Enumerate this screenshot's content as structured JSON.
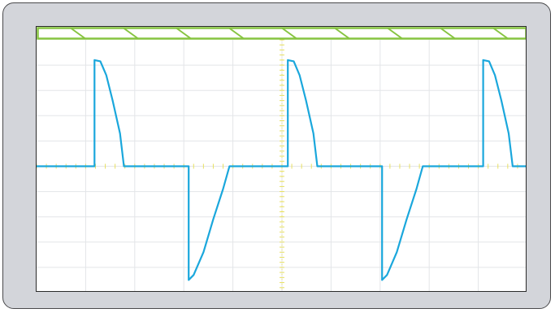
{
  "scope": {
    "grid_divisions": {
      "x": 10,
      "y": 10
    },
    "colors": {
      "bezel": "#d3d5da",
      "bezel_border": "#4a4a4c",
      "screen": "#ffffff",
      "grid": "#e3e5e8",
      "center_ticks": "#e8e060",
      "trace": "#1aa7dc",
      "trigger_band": "#86c440"
    },
    "trigger_band_segments": 9
  },
  "chart_data": {
    "type": "line",
    "xlim": [
      0,
      10
    ],
    "ylim": [
      -5,
      5
    ],
    "grid": true,
    "series": [
      {
        "points": [
          [
            0,
            0
          ],
          [
            1.18,
            0
          ],
          [
            1.18,
            4.2
          ],
          [
            1.3,
            4.15
          ],
          [
            1.42,
            3.6
          ],
          [
            1.55,
            2.6
          ],
          [
            1.7,
            1.3
          ],
          [
            1.78,
            0
          ],
          [
            3.1,
            0
          ],
          [
            3.1,
            -4.5
          ],
          [
            3.2,
            -4.3
          ],
          [
            3.4,
            -3.4
          ],
          [
            3.6,
            -2.1
          ],
          [
            3.8,
            -0.9
          ],
          [
            3.93,
            0
          ],
          [
            5.12,
            0
          ],
          [
            5.12,
            4.2
          ],
          [
            5.24,
            4.15
          ],
          [
            5.36,
            3.6
          ],
          [
            5.49,
            2.6
          ],
          [
            5.64,
            1.3
          ],
          [
            5.72,
            0
          ],
          [
            7.04,
            0
          ],
          [
            7.04,
            -4.5
          ],
          [
            7.14,
            -4.3
          ],
          [
            7.34,
            -3.4
          ],
          [
            7.54,
            -2.1
          ],
          [
            7.74,
            -0.9
          ],
          [
            7.87,
            0
          ],
          [
            9.1,
            0
          ],
          [
            9.1,
            4.2
          ],
          [
            9.22,
            4.15
          ],
          [
            9.34,
            3.6
          ],
          [
            9.47,
            2.6
          ],
          [
            9.62,
            1.3
          ],
          [
            9.7,
            0
          ],
          [
            10,
            0
          ]
        ]
      }
    ]
  }
}
